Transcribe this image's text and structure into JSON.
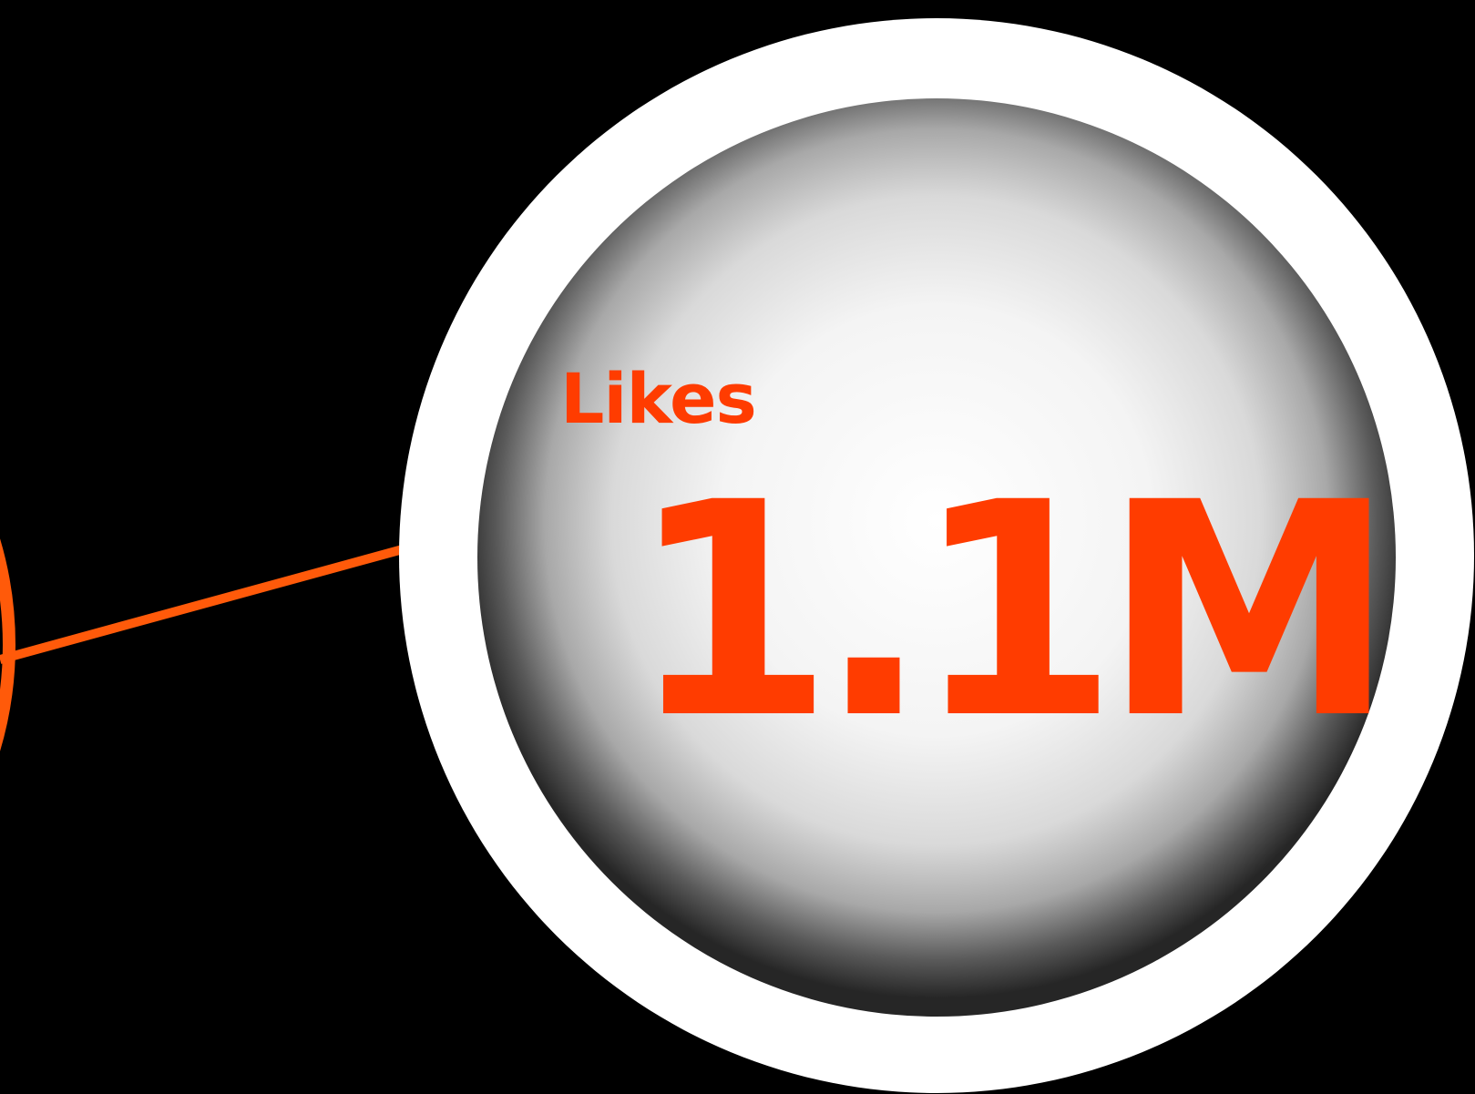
{
  "stat": {
    "label": "Likes",
    "value": "1.1M"
  },
  "colors": {
    "background": "#000000",
    "accent": "#ff3c00",
    "connector": "#ff5a0a",
    "ring": "#ffffff"
  }
}
